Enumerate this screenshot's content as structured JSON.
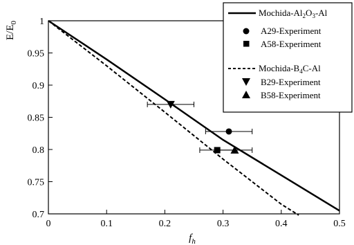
{
  "chart_data": {
    "type": "line",
    "xlabel": "f",
    "xlabel_sub": "h",
    "ylabel": "E/E",
    "ylabel_sub": "0",
    "xlim": [
      0,
      0.5
    ],
    "ylim": [
      0.7,
      1.0
    ],
    "x_ticks": [
      0,
      0.1,
      0.2,
      0.3,
      0.4,
      0.5
    ],
    "x_tick_labels": [
      "0",
      "0.1",
      "0.2",
      "0.3",
      "0.4",
      "0.5"
    ],
    "y_ticks": [
      0.7,
      0.75,
      0.8,
      0.85,
      0.9,
      0.95,
      1.0
    ],
    "y_tick_labels": [
      "0.7",
      "0.75",
      "0.8",
      "0.85",
      "0.9",
      "0.95",
      "1"
    ],
    "grid": false,
    "legend_position": "top-right",
    "series": [
      {
        "name": "Mochida-Al2O3-Al",
        "kind": "line",
        "style": "solid",
        "x": [
          0,
          0.1,
          0.2,
          0.3,
          0.4,
          0.5
        ],
        "y": [
          1.0,
          0.94,
          0.878,
          0.815,
          0.76,
          0.705
        ]
      },
      {
        "name": "Mochida-B4C-Al",
        "kind": "line",
        "style": "dashed",
        "x": [
          0,
          0.1,
          0.2,
          0.3,
          0.4,
          0.43
        ],
        "y": [
          1.0,
          0.93,
          0.858,
          0.785,
          0.715,
          0.698
        ]
      },
      {
        "name": "A29-Experiment",
        "kind": "marker",
        "marker": "circle",
        "x": [
          0.31
        ],
        "y": [
          0.828
        ],
        "xerr": [
          [
            0.27,
            0.35
          ]
        ]
      },
      {
        "name": "A58-Experiment",
        "kind": "marker",
        "marker": "square",
        "x": [
          0.29
        ],
        "y": [
          0.799
        ],
        "xerr": [
          [
            0.26,
            0.32
          ]
        ]
      },
      {
        "name": "B29-Experiment",
        "kind": "marker",
        "marker": "triangle-down",
        "x": [
          0.21
        ],
        "y": [
          0.87
        ],
        "xerr": [
          [
            0.17,
            0.25
          ]
        ]
      },
      {
        "name": "B58-Experiment",
        "kind": "marker",
        "marker": "triangle-up",
        "x": [
          0.32
        ],
        "y": [
          0.799
        ],
        "xerr": [
          [
            0.29,
            0.35
          ]
        ]
      }
    ],
    "legend": {
      "group1": {
        "line_label": {
          "prefix": "Mochida-Al",
          "sub1": "2",
          "mid": "O",
          "sub2": "3",
          "suffix": "-Al"
        },
        "entries": [
          "A29-Experiment",
          "A58-Experiment"
        ]
      },
      "group2": {
        "line_label": {
          "prefix": "Mochida-B",
          "sub1": "4",
          "suffix": "C-Al"
        },
        "entries": [
          "B29-Experiment",
          "B58-Experiment"
        ]
      }
    }
  }
}
